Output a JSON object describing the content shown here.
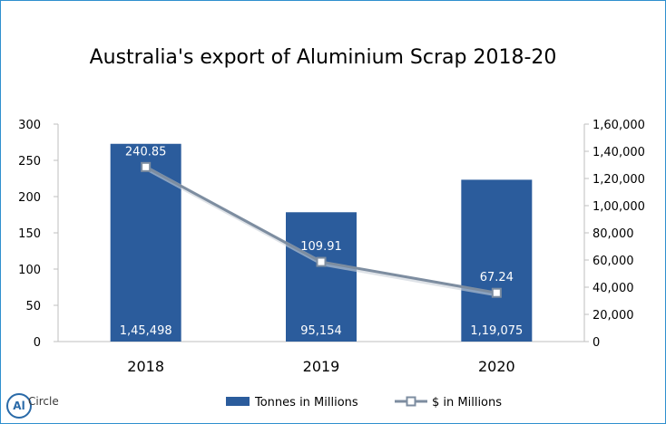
{
  "chart_data": {
    "type": "bar",
    "title": "Australia's export of Aluminium Scrap 2018-20",
    "categories": [
      "2018",
      "2019",
      "2020"
    ],
    "series": [
      {
        "name": "Tonnes in Millions",
        "type": "bar",
        "axis": "right",
        "values": [
          145498,
          95154,
          119075
        ],
        "labels": [
          "1,45,498",
          "95,154",
          "1,19,075"
        ],
        "color": "#2b5c9c"
      },
      {
        "name": "$ in Millions",
        "type": "line",
        "axis": "left",
        "values": [
          240.85,
          109.91,
          67.24
        ],
        "labels": [
          "240.85",
          "109.91",
          "67.24"
        ],
        "color": "#7d8da0"
      }
    ],
    "y_left": {
      "min": 0,
      "max": 300,
      "ticks": [
        "0",
        "50",
        "100",
        "150",
        "200",
        "250",
        "300"
      ]
    },
    "y_right": {
      "min": 0,
      "max": 160000,
      "ticks": [
        "0",
        "20,000",
        "40,000",
        "60,000",
        "80,000",
        "1,00,000",
        "1,20,000",
        "1,40,000",
        "1,60,000"
      ]
    },
    "grid": false,
    "legend": "bottom"
  },
  "logo": {
    "mark": "Al",
    "word": "Circle"
  }
}
